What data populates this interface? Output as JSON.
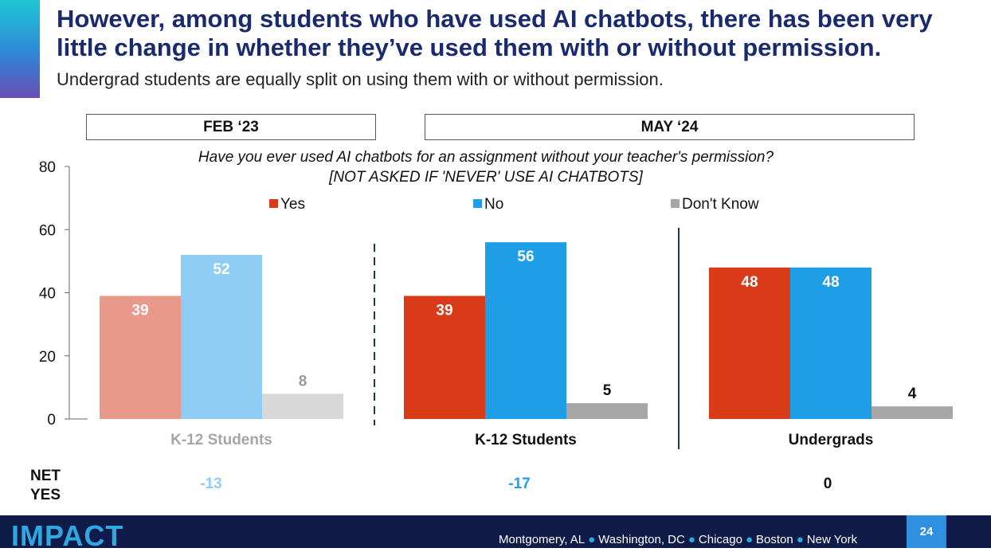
{
  "title": "However, among students who have used AI chatbots, there has been very little change in whether they’ve used them with or without permission.",
  "subtitle": "Undergrad students are equally split on using them with or without permission.",
  "periods": [
    {
      "label": "FEB ‘23"
    },
    {
      "label": "MAY ‘24"
    }
  ],
  "chart_data": {
    "type": "bar",
    "title": "Have you ever used AI chatbots for an assignment without your teacher's permission?",
    "note": "[NOT ASKED IF 'NEVER' USE AI CHATBOTS]",
    "categories": [
      "K-12 Students",
      "K-12 Students",
      "Undergrads"
    ],
    "series": [
      {
        "name": "Yes",
        "values": [
          39,
          39,
          48
        ],
        "colors": [
          "#e9998a",
          "#d93a18",
          "#d93a18"
        ],
        "label_colors": [
          "#ffffff",
          "#ffffff",
          "#ffffff"
        ]
      },
      {
        "name": "No",
        "values": [
          52,
          56,
          48
        ],
        "colors": [
          "#8fcdf4",
          "#1f9ee8",
          "#1f9ee8"
        ],
        "label_colors": [
          "#ffffff",
          "#ffffff",
          "#ffffff"
        ]
      },
      {
        "name": "Don't Know",
        "values": [
          8,
          5,
          4
        ],
        "colors": [
          "#d8d8d8",
          "#a6a6a6",
          "#a6a6a6"
        ],
        "label_colors": [
          "#999999",
          "#111111",
          "#111111"
        ]
      }
    ],
    "legend_colors": [
      "#d93a18",
      "#1f9ee8",
      "#a6a6a6"
    ],
    "category_label_colors": [
      "#a6a6a6",
      "#111111",
      "#111111"
    ],
    "ylim": [
      0,
      80
    ],
    "yticks": [
      0,
      20,
      40,
      60,
      80
    ],
    "legend_position": "top",
    "grid": false
  },
  "net": {
    "label_line1": "NET",
    "label_line2": "YES",
    "values": [
      "-13",
      "-17",
      "0"
    ],
    "colors": [
      "#8fcdf4",
      "#1f9ee8",
      "#111111"
    ]
  },
  "footer": {
    "logo": "IMPACT",
    "locations": [
      "Montgomery, AL",
      "Washington, DC",
      "Chicago",
      "Boston",
      "New York"
    ],
    "page_number": "24"
  }
}
